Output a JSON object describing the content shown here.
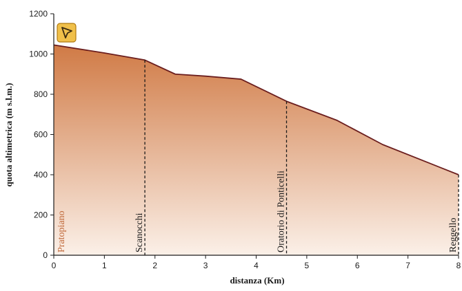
{
  "chart_data": {
    "type": "area",
    "title": "",
    "xlabel": "distanza (Km)",
    "ylabel": "quota altimetrica (m s.l.m.)",
    "xlim": [
      0,
      8
    ],
    "ylim": [
      0,
      1200
    ],
    "x_ticks": [
      0,
      1,
      2,
      3,
      4,
      5,
      6,
      7,
      8
    ],
    "y_ticks": [
      0,
      200,
      400,
      600,
      800,
      1000,
      1200
    ],
    "grid": false,
    "series": [
      {
        "x": [
          0,
          1.0,
          1.8,
          2.4,
          3.0,
          3.7,
          4.6,
          5.6,
          6.5,
          7.4,
          8.0
        ],
        "y": [
          1045,
          1005,
          970,
          900,
          890,
          875,
          765,
          670,
          550,
          460,
          400
        ]
      }
    ],
    "annotations": [
      {
        "label": "Pratopiano",
        "x": 0.0,
        "y": 1045,
        "style": "start"
      },
      {
        "label": "Scanocchi",
        "x": 1.8,
        "y": 970,
        "style": "dashed"
      },
      {
        "label": "Oratorio di Ponticelli",
        "x": 4.6,
        "y": 765,
        "style": "dashed"
      },
      {
        "label": "Reggello",
        "x": 8.0,
        "y": 400,
        "style": "dashed"
      }
    ],
    "colors": {
      "fill_top": "#d07a45",
      "fill_bottom": "#fbf0e8",
      "line": "#6b1e1e",
      "axis": "#1a1a1a",
      "start_label": "#c0693a",
      "icon_bg": "#f0c04a",
      "icon_border": "#b07a10"
    },
    "icon": "pointer-arrow-icon"
  }
}
